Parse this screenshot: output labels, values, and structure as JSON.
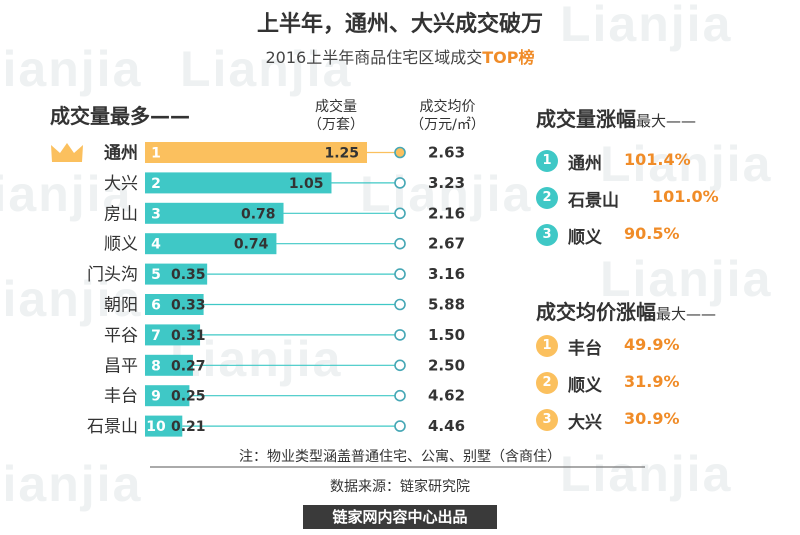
{
  "header": {
    "title": "上半年，通州、大兴成交破万",
    "subtitle_prefix": "2016上半年商品住宅区域成交",
    "subtitle_highlight": "TOP榜"
  },
  "left": {
    "section_title": "成交量最多——",
    "col_volume": [
      "成交量",
      "（万套）"
    ],
    "col_price": [
      "成交均价",
      "（万元/㎡）"
    ]
  },
  "chart_data": {
    "type": "bar",
    "orientation": "horizontal",
    "categories": [
      "通州",
      "大兴",
      "房山",
      "顺义",
      "门头沟",
      "朝阳",
      "平谷",
      "昌平",
      "丰台",
      "石景山"
    ],
    "ranks": [
      "1",
      "2",
      "3",
      "4",
      "5",
      "6",
      "7",
      "8",
      "9",
      "10"
    ],
    "series": [
      {
        "values": [
          1.25,
          1.05,
          0.78,
          0.74,
          0.35,
          0.33,
          0.31,
          0.27,
          0.25,
          0.21
        ]
      }
    ],
    "value_labels": [
      "1.25",
      "1.05",
      "0.78",
      "0.74",
      "0.35",
      "0.33",
      "0.31",
      "0.27",
      "0.25",
      "0.21"
    ],
    "avg_price_labels": [
      "2.63",
      "3.23",
      "2.16",
      "2.67",
      "3.16",
      "5.88",
      "1.50",
      "2.50",
      "4.62",
      "4.46"
    ],
    "xlim": [
      0,
      1.25
    ],
    "colors": {
      "first": "#fbc05e",
      "others": "#3fc8c6"
    }
  },
  "right_volume": {
    "title_main": "成交量涨幅",
    "title_small": "最大——",
    "items": [
      {
        "rank": "1",
        "name": "通州",
        "value": "101.4%"
      },
      {
        "rank": "2",
        "name": "石景山",
        "value": "101.0%"
      },
      {
        "rank": "3",
        "name": "顺义",
        "value": "90.5%"
      }
    ],
    "badge_color": "#3fc8c6"
  },
  "right_price": {
    "title_main": "成交均价涨幅",
    "title_small": "最大——",
    "items": [
      {
        "rank": "1",
        "name": "丰台",
        "value": "49.9%"
      },
      {
        "rank": "2",
        "name": "顺义",
        "value": "31.9%"
      },
      {
        "rank": "3",
        "name": "大兴",
        "value": "30.9%"
      }
    ],
    "badge_color": "#fbc05e"
  },
  "notes": {
    "scope": "注：物业类型涵盖普通住宅、公寓、别墅（含商住）",
    "source": "数据来源：链家研究院",
    "publisher": "链家网内容中心出品"
  },
  "watermark": {
    "text": "Lianjia",
    "small": "链家",
    "com": ".com"
  },
  "icons": {
    "top_rank": "crown-icon",
    "price_marker": "circle-marker-icon"
  }
}
